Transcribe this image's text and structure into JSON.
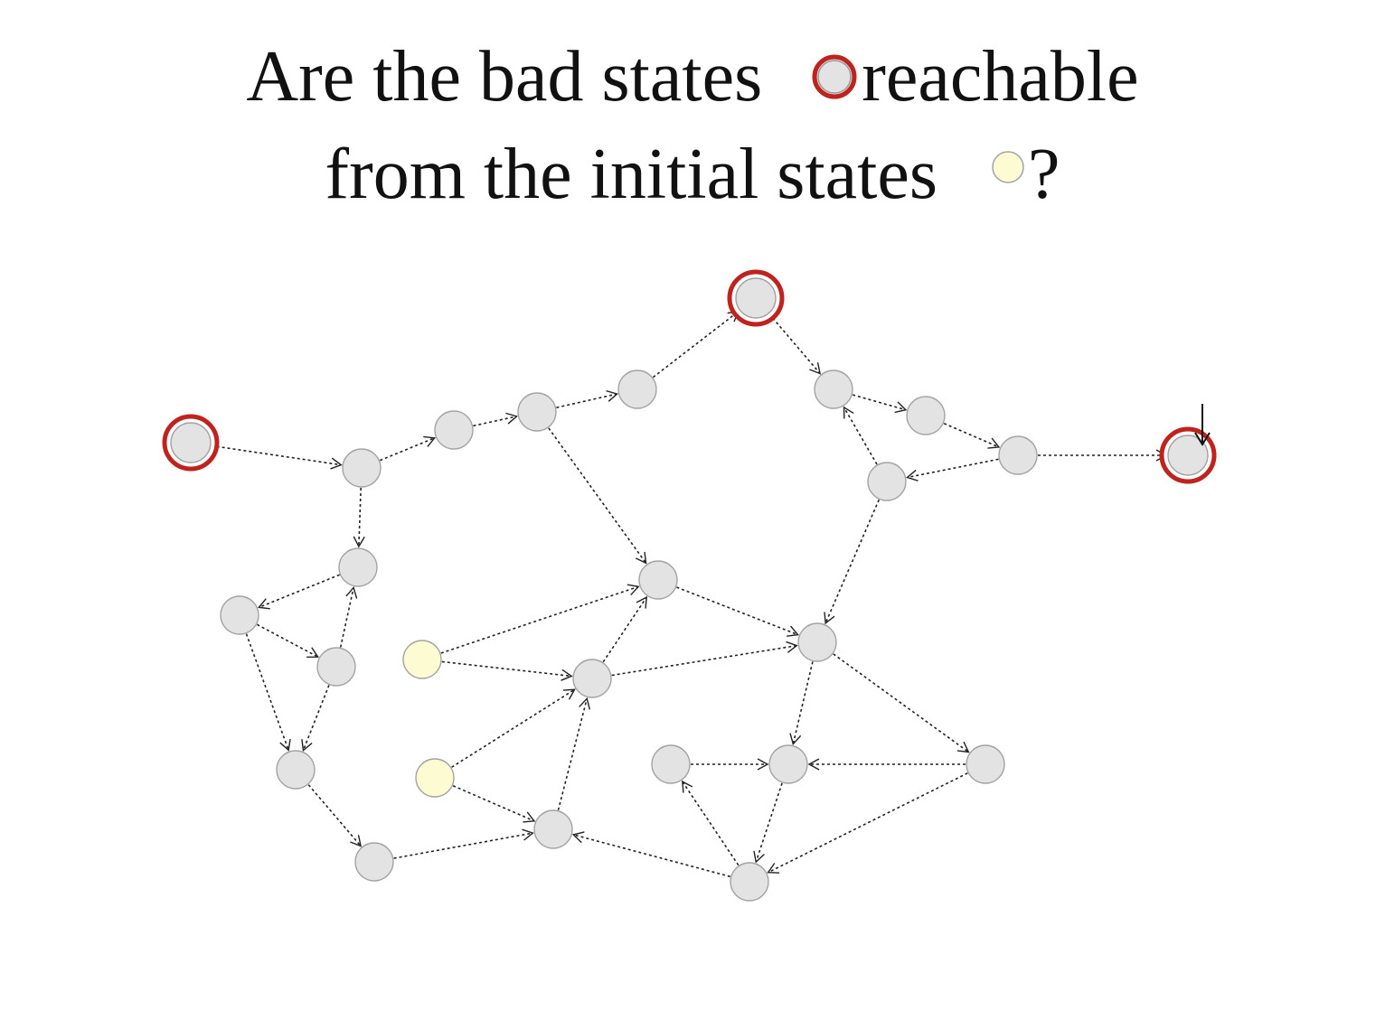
{
  "title": {
    "line1_part1": "Are the bad states",
    "line1_part2": "reachable",
    "line2_part1": "from the initial states",
    "line2_part2": "?"
  },
  "legend": {
    "bad_state_icon": "gray-circle-with-red-ring",
    "initial_state_icon": "pale-yellow-circle"
  },
  "colors": {
    "node_fill": "#e3e3e3",
    "node_stroke": "#a3a3a3",
    "initial_fill": "#fdfbd2",
    "bad_ring": "#c0221e",
    "edge": "#222222"
  },
  "graph": {
    "nodes": [
      {
        "id": "bad-left",
        "type": "bad"
      },
      {
        "id": "n1",
        "type": "normal"
      },
      {
        "id": "n2",
        "type": "normal"
      },
      {
        "id": "n3",
        "type": "normal"
      },
      {
        "id": "n4",
        "type": "normal"
      },
      {
        "id": "bad-top",
        "type": "bad"
      },
      {
        "id": "n5",
        "type": "normal"
      },
      {
        "id": "n6",
        "type": "normal"
      },
      {
        "id": "n7",
        "type": "normal"
      },
      {
        "id": "n8",
        "type": "normal"
      },
      {
        "id": "bad-right",
        "type": "bad"
      },
      {
        "id": "n9",
        "type": "normal"
      },
      {
        "id": "n10",
        "type": "normal"
      },
      {
        "id": "n11",
        "type": "normal"
      },
      {
        "id": "n12",
        "type": "normal"
      },
      {
        "id": "init-1",
        "type": "initial"
      },
      {
        "id": "n13",
        "type": "normal"
      },
      {
        "id": "n14",
        "type": "normal"
      },
      {
        "id": "n15",
        "type": "normal"
      },
      {
        "id": "n16",
        "type": "normal"
      },
      {
        "id": "init-2",
        "type": "initial"
      },
      {
        "id": "n17",
        "type": "normal"
      },
      {
        "id": "n18",
        "type": "normal"
      },
      {
        "id": "n19",
        "type": "normal"
      },
      {
        "id": "n20",
        "type": "normal"
      },
      {
        "id": "n21",
        "type": "normal"
      },
      {
        "id": "n22",
        "type": "normal"
      }
    ],
    "edges": [
      [
        "bad-left",
        "n1"
      ],
      [
        "n1",
        "n2"
      ],
      [
        "n2",
        "n3"
      ],
      [
        "n3",
        "n4"
      ],
      [
        "n4",
        "bad-top"
      ],
      [
        "bad-top",
        "n5"
      ],
      [
        "n5",
        "n6"
      ],
      [
        "n6",
        "n8"
      ],
      [
        "n8",
        "bad-right"
      ],
      [
        "n8",
        "n7"
      ],
      [
        "n7",
        "n5"
      ],
      [
        "n7",
        "n14"
      ],
      [
        "n3",
        "n13"
      ],
      [
        "n13",
        "n14"
      ],
      [
        "n1",
        "n9"
      ],
      [
        "n9",
        "n10"
      ],
      [
        "n10",
        "n11"
      ],
      [
        "n11",
        "n9"
      ],
      [
        "n10",
        "n12"
      ],
      [
        "n11",
        "n12"
      ],
      [
        "n12",
        "n17"
      ],
      [
        "init-1",
        "n13"
      ],
      [
        "init-1",
        "n15"
      ],
      [
        "n15",
        "n13"
      ],
      [
        "n15",
        "n14"
      ],
      [
        "init-2",
        "n15"
      ],
      [
        "init-2",
        "n16"
      ],
      [
        "n16",
        "n15"
      ],
      [
        "n17",
        "n16"
      ],
      [
        "n14",
        "n19"
      ],
      [
        "n14",
        "n20"
      ],
      [
        "n18",
        "n19"
      ],
      [
        "n20",
        "n19"
      ],
      [
        "n19",
        "n21"
      ],
      [
        "n21",
        "n18"
      ],
      [
        "n21",
        "n16"
      ],
      [
        "n20",
        "n21"
      ]
    ]
  }
}
